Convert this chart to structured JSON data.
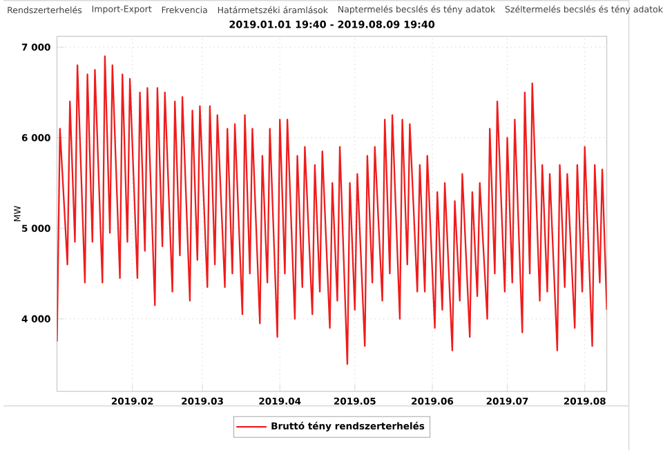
{
  "chart_data": {
    "type": "line",
    "title": "2019.01.01 19:40 - 2019.08.09 19:40",
    "ylabel": "MW",
    "annotations": [
      "Rendszerterhelés",
      "Import-Export",
      "Frekvencia",
      "Határmetszéki áramlások",
      "Naptermelés becslés és tény adatok",
      "Széltermelés becslés és tény adatok"
    ],
    "xlim": [
      "2019-01-01T19:40",
      "2019-08-09T19:40"
    ],
    "xticks": [
      {
        "value": "2019-02-01",
        "label": "2019.02"
      },
      {
        "value": "2019-03-01",
        "label": "2019.03"
      },
      {
        "value": "2019-04-01",
        "label": "2019.04"
      },
      {
        "value": "2019-05-01",
        "label": "2019.05"
      },
      {
        "value": "2019-06-01",
        "label": "2019.06"
      },
      {
        "value": "2019-07-01",
        "label": "2019.07"
      },
      {
        "value": "2019-08-01",
        "label": "2019.08"
      }
    ],
    "ylim": [
      3200,
      7120
    ],
    "yticks": [
      {
        "value": 4000,
        "label": "4 000"
      },
      {
        "value": 5000,
        "label": "5 000"
      },
      {
        "value": 6000,
        "label": "6 000"
      },
      {
        "value": 7000,
        "label": "7 000"
      }
    ],
    "grid": true,
    "legend": "bottom",
    "marker": "none",
    "line_style": "solid",
    "series": [
      {
        "name": "Bruttó tény rendszerterhelés",
        "color": "#ee1c1c",
        "x": [
          "2019-01-01T19:40",
          "2019-01-03",
          "2019-01-06",
          "2019-01-07",
          "2019-01-09",
          "2019-01-10",
          "2019-01-13",
          "2019-01-14",
          "2019-01-16",
          "2019-01-17",
          "2019-01-20",
          "2019-01-21",
          "2019-01-23",
          "2019-01-24",
          "2019-01-27",
          "2019-01-28",
          "2019-01-30",
          "2019-01-31",
          "2019-02-03",
          "2019-02-04",
          "2019-02-06",
          "2019-02-07",
          "2019-02-10",
          "2019-02-11",
          "2019-02-13",
          "2019-02-14",
          "2019-02-17",
          "2019-02-18",
          "2019-02-20",
          "2019-02-21",
          "2019-02-24",
          "2019-02-25",
          "2019-02-27",
          "2019-02-28",
          "2019-03-03",
          "2019-03-04",
          "2019-03-06",
          "2019-03-07",
          "2019-03-10",
          "2019-03-11",
          "2019-03-13",
          "2019-03-14",
          "2019-03-17",
          "2019-03-18",
          "2019-03-20",
          "2019-03-21",
          "2019-03-24",
          "2019-03-25",
          "2019-03-27",
          "2019-03-28",
          "2019-03-31",
          "2019-04-01",
          "2019-04-03",
          "2019-04-04",
          "2019-04-07",
          "2019-04-08",
          "2019-04-10",
          "2019-04-11",
          "2019-04-14",
          "2019-04-15",
          "2019-04-17",
          "2019-04-18",
          "2019-04-21",
          "2019-04-22",
          "2019-04-24",
          "2019-04-25",
          "2019-04-28",
          "2019-04-29",
          "2019-05-01",
          "2019-05-02",
          "2019-05-05",
          "2019-05-06",
          "2019-05-08",
          "2019-05-09",
          "2019-05-12",
          "2019-05-13",
          "2019-05-15",
          "2019-05-16",
          "2019-05-19",
          "2019-05-20",
          "2019-05-22",
          "2019-05-23",
          "2019-05-26",
          "2019-05-27",
          "2019-05-29",
          "2019-05-30",
          "2019-06-02",
          "2019-06-03",
          "2019-06-05",
          "2019-06-06",
          "2019-06-09",
          "2019-06-10",
          "2019-06-12",
          "2019-06-13",
          "2019-06-16",
          "2019-06-17",
          "2019-06-19",
          "2019-06-20",
          "2019-06-23",
          "2019-06-24",
          "2019-06-26",
          "2019-06-27",
          "2019-06-30",
          "2019-07-01",
          "2019-07-03",
          "2019-07-04",
          "2019-07-07",
          "2019-07-08",
          "2019-07-10",
          "2019-07-11",
          "2019-07-14",
          "2019-07-15",
          "2019-07-17",
          "2019-07-18",
          "2019-07-21",
          "2019-07-22",
          "2019-07-24",
          "2019-07-25",
          "2019-07-28",
          "2019-07-29",
          "2019-07-31",
          "2019-08-01",
          "2019-08-04",
          "2019-08-05",
          "2019-08-07",
          "2019-08-08",
          "2019-08-09T19:40"
        ],
        "values": [
          3750,
          6100,
          4600,
          6400,
          4850,
          6800,
          4400,
          6700,
          4850,
          6750,
          4400,
          6900,
          4950,
          6800,
          4450,
          6700,
          4850,
          6650,
          4450,
          6500,
          4750,
          6550,
          4150,
          6550,
          4800,
          6500,
          4300,
          6400,
          4700,
          6450,
          4200,
          6300,
          4650,
          6350,
          4350,
          6350,
          4600,
          6250,
          4350,
          6100,
          4500,
          6150,
          4050,
          6250,
          4500,
          6100,
          3950,
          5800,
          4400,
          6100,
          3800,
          6200,
          4500,
          6200,
          4000,
          5800,
          4350,
          5900,
          4050,
          5700,
          4300,
          5850,
          3900,
          5500,
          4200,
          5900,
          3500,
          5500,
          4100,
          5600,
          3700,
          5800,
          4400,
          5900,
          4200,
          6200,
          4500,
          6250,
          4000,
          6200,
          4600,
          6150,
          4300,
          5700,
          4300,
          5800,
          3900,
          5400,
          4100,
          5500,
          3650,
          5300,
          4200,
          5600,
          3800,
          5400,
          4250,
          5500,
          4000,
          6100,
          4500,
          6400,
          4300,
          6000,
          4400,
          6200,
          3850,
          6500,
          4500,
          6600,
          4200,
          5700,
          4300,
          5600,
          3650,
          5700,
          4350,
          5600,
          3900,
          5700,
          4300,
          5900,
          3700,
          5700,
          4400,
          5650,
          4100
        ]
      }
    ]
  }
}
